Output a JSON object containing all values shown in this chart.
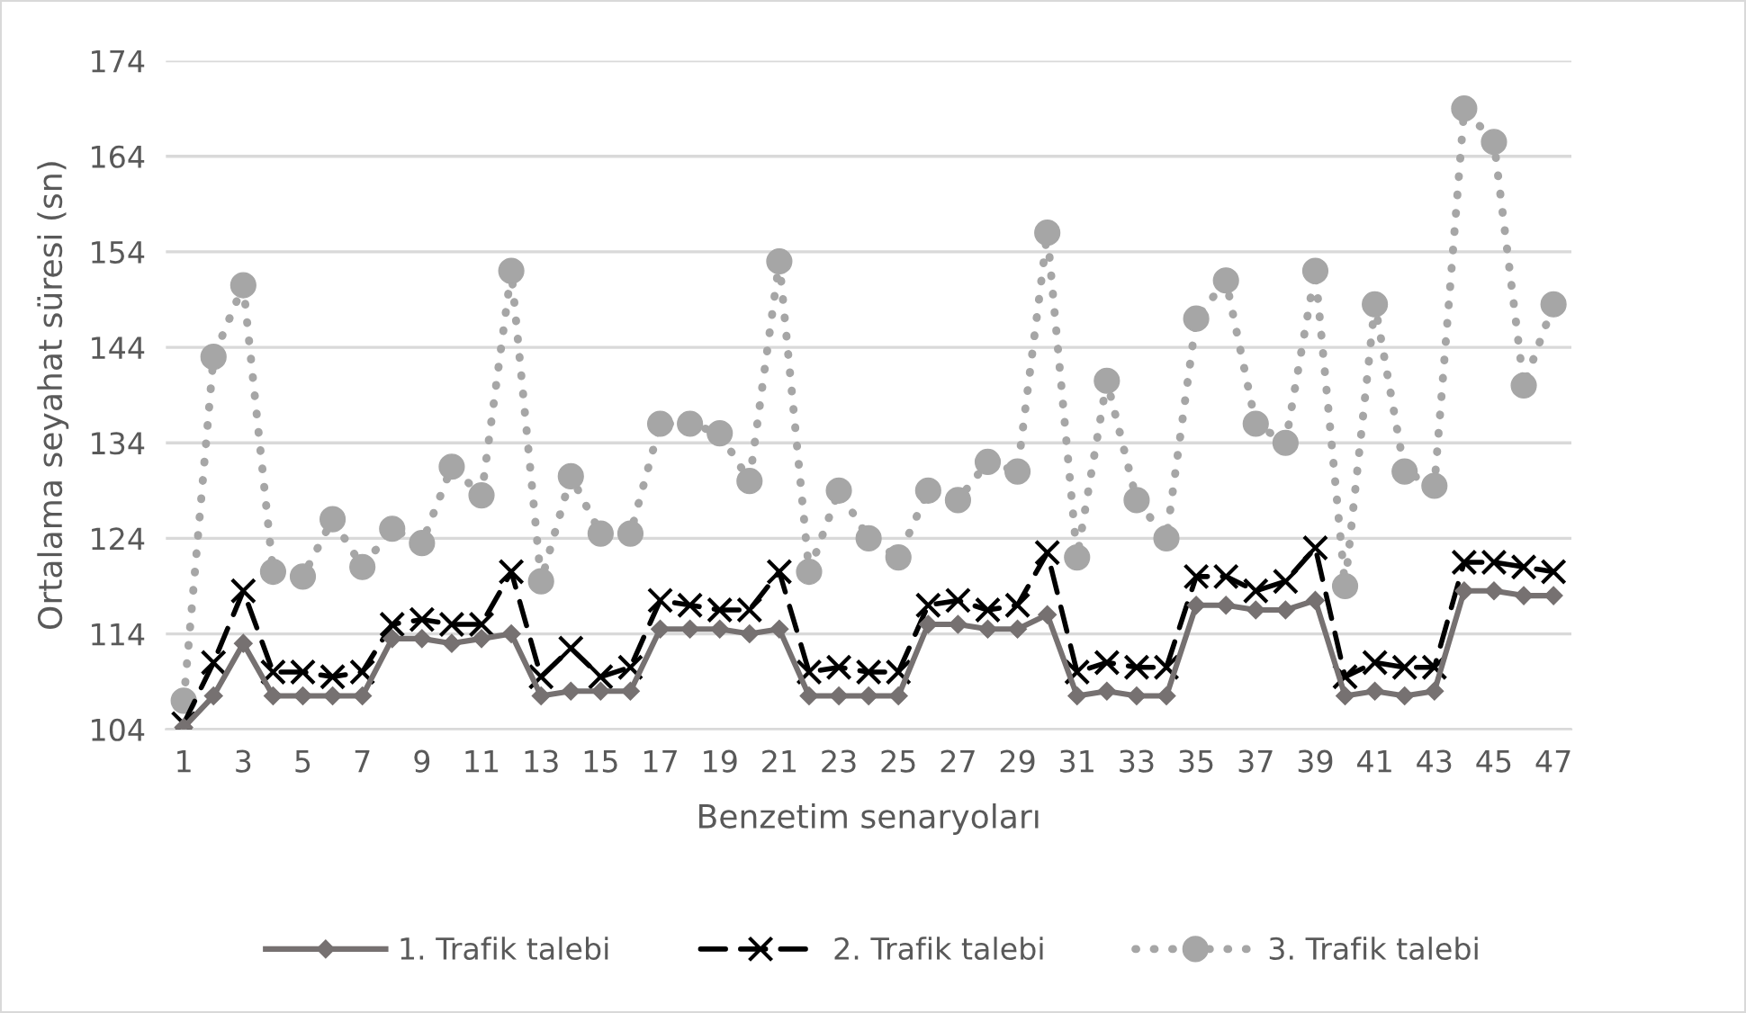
{
  "chart_data": {
    "type": "line",
    "xlabel": "Benzetim senaryoları",
    "ylabel": "Ortalama seyahat süresi (sn)",
    "categories": [
      "1",
      null,
      "3",
      null,
      "5",
      null,
      "7",
      null,
      "9",
      null,
      "11",
      null,
      "13",
      null,
      "15",
      null,
      "17",
      null,
      "19",
      null,
      "21",
      null,
      "23",
      null,
      "25",
      null,
      "27",
      null,
      "29",
      null,
      "31",
      null,
      "33",
      null,
      "35",
      null,
      "37",
      null,
      "39",
      null,
      "41",
      null,
      "43",
      null,
      "45",
      null,
      "47"
    ],
    "ylim": [
      104,
      174
    ],
    "yticks": [
      104,
      114,
      124,
      134,
      144,
      154,
      164,
      174
    ],
    "grid": "y",
    "legend": "bottom",
    "series": [
      {
        "name": "1. Trafik talebi",
        "color": "#767171",
        "marker": "diamond",
        "line_style": "solid",
        "values": [
          104.2,
          107.5,
          113,
          107.5,
          107.5,
          107.5,
          107.5,
          113.5,
          113.5,
          113,
          113.5,
          114,
          107.5,
          108,
          108,
          108,
          114.5,
          114.5,
          114.5,
          114,
          114.5,
          107.5,
          107.5,
          107.5,
          107.5,
          115,
          115,
          114.5,
          114.5,
          116,
          107.5,
          108,
          107.5,
          107.5,
          117,
          117,
          116.5,
          116.5,
          117.5,
          107.5,
          108,
          107.5,
          108,
          118.5,
          118.5,
          118,
          118
        ]
      },
      {
        "name": "2. Trafik talebi",
        "color": "#000000",
        "marker": "cross",
        "line_style": "dashed",
        "values": [
          104.6,
          111,
          118.5,
          110,
          110,
          109.5,
          110,
          115,
          115.5,
          115,
          115,
          120.5,
          109.5,
          112.5,
          109.5,
          110.5,
          117.5,
          117,
          116.5,
          116.5,
          120.5,
          110,
          110.5,
          110,
          110,
          117,
          117.5,
          116.5,
          117,
          122.5,
          110,
          111,
          110.5,
          110.5,
          120,
          120,
          118.5,
          119.5,
          123,
          109.5,
          111,
          110.5,
          110.5,
          121.5,
          121.5,
          121,
          120.5
        ]
      },
      {
        "name": "3. Trafik talebi",
        "color": "#a6a6a6",
        "marker": "circle",
        "line_style": "dotted",
        "values": [
          107,
          143,
          150.5,
          120.5,
          120,
          126,
          121,
          125,
          123.5,
          131.5,
          128.5,
          152,
          119.5,
          130.5,
          124.5,
          124.5,
          136,
          136,
          135,
          130,
          153,
          120.5,
          129,
          124,
          122,
          129,
          128,
          132,
          131,
          156,
          122,
          140.5,
          128,
          124,
          147,
          151,
          136,
          134,
          152,
          119,
          148.5,
          131,
          129.5,
          169,
          165.5,
          140,
          148.5
        ]
      }
    ]
  }
}
